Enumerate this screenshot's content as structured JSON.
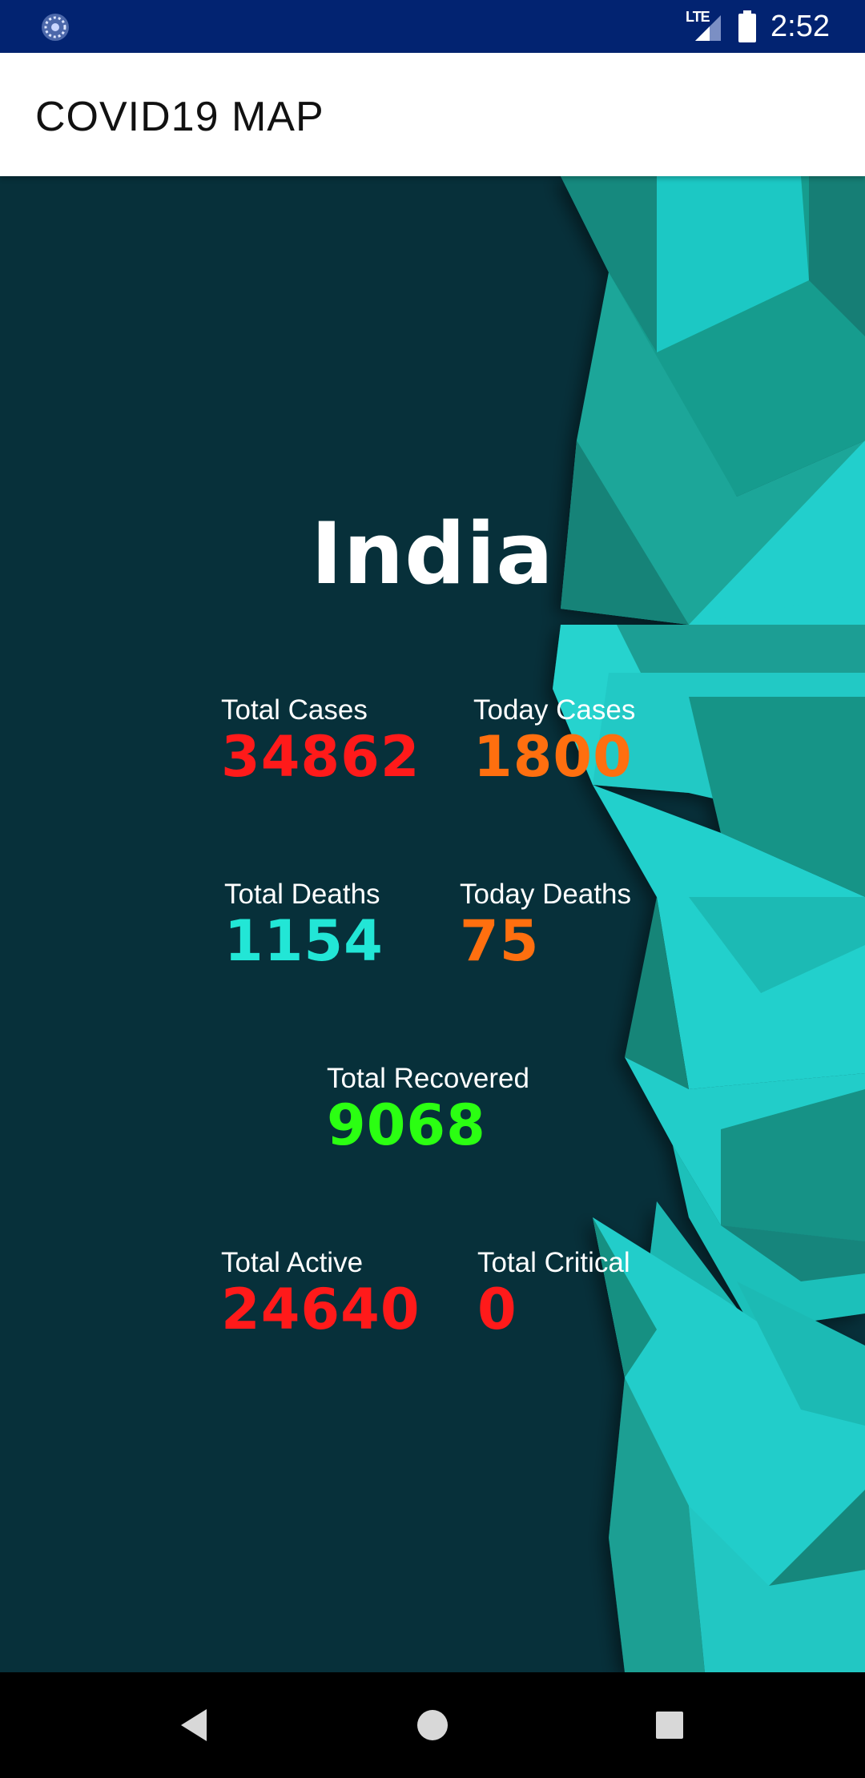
{
  "status_bar": {
    "network": "LTE",
    "time": "2:52",
    "icons": [
      "app-notification-icon",
      "lte-signal-icon",
      "battery-icon"
    ]
  },
  "app_bar": {
    "title": "COVID19 MAP"
  },
  "main": {
    "country": "India",
    "stats": {
      "total_cases": {
        "label": "Total Cases",
        "value": "34862",
        "color": "#FF1A1A"
      },
      "today_cases": {
        "label": "Today Cases",
        "value": "1800",
        "color": "#FF6F0F"
      },
      "total_deaths": {
        "label": "Total Deaths",
        "value": "1154",
        "color": "#22E6D6"
      },
      "today_deaths": {
        "label": "Today Deaths",
        "value": "75",
        "color": "#FF6F0F"
      },
      "total_recovered": {
        "label": "Total Recovered",
        "value": "9068",
        "color": "#2BFF12"
      },
      "total_active": {
        "label": "Total Active",
        "value": "24640",
        "color": "#FF1A1A"
      },
      "total_critical": {
        "label": "Total Critical",
        "value": "0",
        "color": "#FF1A1A"
      }
    },
    "background_color": "#07303A",
    "accent_color": "#24D0CD"
  },
  "nav_bar": {
    "icons": [
      "back-icon",
      "home-icon",
      "recents-icon"
    ]
  }
}
